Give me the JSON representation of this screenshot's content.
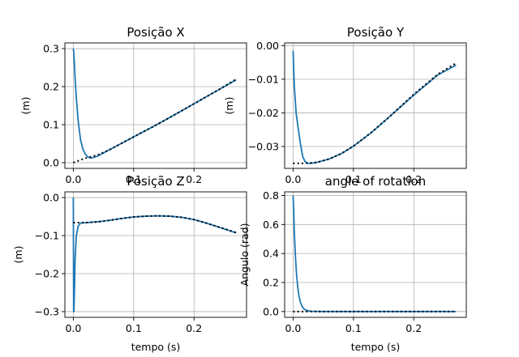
{
  "chart_data": [
    {
      "type": "line",
      "title": "Posição X",
      "xlabel": "",
      "ylabel": "(m)",
      "xlim": [
        -0.014,
        0.287
      ],
      "ylim": [
        -0.015,
        0.315
      ],
      "xticks": [
        0.0,
        0.1,
        0.2
      ],
      "xtick_labels": [
        "0.0",
        "0.1",
        "0.2"
      ],
      "yticks": [
        0.0,
        0.1,
        0.2,
        0.3
      ],
      "ytick_labels": [
        "0.0",
        "0.1",
        "0.2",
        "0.3"
      ],
      "grid": true,
      "series": [
        {
          "style": "solid",
          "color": "#1f77b4",
          "x": [
            0.0,
            0.001,
            0.003,
            0.005,
            0.008,
            0.012,
            0.016,
            0.02,
            0.025,
            0.03,
            0.04,
            0.06,
            0.08,
            0.1,
            0.13,
            0.16,
            0.2,
            0.24,
            0.27
          ],
          "y": [
            0.3,
            0.285,
            0.22,
            0.17,
            0.11,
            0.06,
            0.035,
            0.022,
            0.014,
            0.012,
            0.017,
            0.034,
            0.051,
            0.068,
            0.093,
            0.119,
            0.155,
            0.191,
            0.218
          ]
        },
        {
          "style": "dotted",
          "color": "#000000",
          "x": [
            0.0,
            0.02,
            0.04,
            0.06,
            0.08,
            0.1,
            0.13,
            0.16,
            0.2,
            0.24,
            0.27
          ],
          "y": [
            0.0,
            0.012,
            0.02,
            0.034,
            0.051,
            0.068,
            0.093,
            0.119,
            0.155,
            0.191,
            0.22
          ]
        }
      ]
    },
    {
      "type": "line",
      "title": "Posição Y",
      "xlabel": "",
      "ylabel": "(m)",
      "xlim": [
        -0.014,
        0.287
      ],
      "ylim": [
        -0.0365,
        0.0008
      ],
      "xticks": [
        0.0,
        0.1,
        0.2
      ],
      "xtick_labels": [
        "0.0",
        "0.1",
        "0.2"
      ],
      "yticks": [
        0.0,
        -0.01,
        -0.02,
        -0.03
      ],
      "ytick_labels": [
        "0.00",
        "−0.01",
        "−0.02",
        "−0.03"
      ],
      "grid": true,
      "series": [
        {
          "style": "solid",
          "color": "#1f77b4",
          "x": [
            0.0,
            0.002,
            0.005,
            0.008,
            0.012,
            0.016,
            0.02,
            0.025,
            0.03,
            0.04,
            0.06,
            0.08,
            0.1,
            0.13,
            0.16,
            0.2,
            0.24,
            0.27
          ],
          "y": [
            -0.0015,
            -0.012,
            -0.02,
            -0.024,
            -0.029,
            -0.033,
            -0.0345,
            -0.035,
            -0.035,
            -0.0347,
            -0.0337,
            -0.0321,
            -0.0299,
            -0.0258,
            -0.0211,
            -0.0147,
            -0.0087,
            -0.0058
          ]
        },
        {
          "style": "dotted",
          "color": "#000000",
          "x": [
            0.0,
            0.02,
            0.04,
            0.06,
            0.08,
            0.1,
            0.13,
            0.16,
            0.2,
            0.24,
            0.27
          ],
          "y": [
            -0.035,
            -0.035,
            -0.0347,
            -0.0337,
            -0.0321,
            -0.0299,
            -0.0258,
            -0.0211,
            -0.0145,
            -0.0085,
            -0.0052
          ]
        }
      ]
    },
    {
      "type": "line",
      "title": "Posição Z",
      "xlabel": "tempo (s)",
      "ylabel": "(m)",
      "xlim": [
        -0.014,
        0.287
      ],
      "ylim": [
        -0.315,
        0.015
      ],
      "xticks": [
        0.0,
        0.1,
        0.2
      ],
      "xtick_labels": [
        "0.0",
        "0.1",
        "0.2"
      ],
      "yticks": [
        0.0,
        -0.1,
        -0.2,
        -0.3
      ],
      "ytick_labels": [
        "0.0",
        "−0.1",
        "−0.2",
        "−0.3"
      ],
      "grid": true,
      "series": [
        {
          "style": "solid",
          "color": "#1f77b4",
          "x": [
            0.0,
            0.0005,
            0.001,
            0.0015,
            0.003,
            0.005,
            0.008,
            0.012,
            0.02,
            0.03,
            0.05,
            0.08,
            0.1,
            0.12,
            0.14,
            0.16,
            0.18,
            0.2,
            0.22,
            0.24,
            0.27
          ],
          "y": [
            0.0,
            -0.3,
            -0.3,
            -0.27,
            -0.16,
            -0.1,
            -0.075,
            -0.067,
            -0.066,
            -0.065,
            -0.062,
            -0.055,
            -0.051,
            -0.049,
            -0.048,
            -0.049,
            -0.052,
            -0.058,
            -0.067,
            -0.077,
            -0.093
          ]
        },
        {
          "style": "dotted",
          "color": "#000000",
          "x": [
            0.0,
            0.02,
            0.04,
            0.06,
            0.08,
            0.1,
            0.12,
            0.14,
            0.16,
            0.18,
            0.2,
            0.22,
            0.24,
            0.27
          ],
          "y": [
            -0.066,
            -0.066,
            -0.064,
            -0.06,
            -0.055,
            -0.051,
            -0.049,
            -0.048,
            -0.049,
            -0.052,
            -0.058,
            -0.067,
            -0.077,
            -0.092
          ]
        }
      ]
    },
    {
      "type": "line",
      "title": "angle of rotation",
      "xlabel": "tempo (s)",
      "ylabel": "Angulo (rad)",
      "xlim": [
        -0.014,
        0.287
      ],
      "ylim": [
        -0.04,
        0.825
      ],
      "xticks": [
        0.0,
        0.1,
        0.2
      ],
      "xtick_labels": [
        "0.0",
        "0.1",
        "0.2"
      ],
      "yticks": [
        0.0,
        0.2,
        0.4,
        0.6,
        0.8
      ],
      "ytick_labels": [
        "0.0",
        "0.2",
        "0.4",
        "0.6",
        "0.8"
      ],
      "grid": true,
      "series": [
        {
          "style": "solid",
          "color": "#1f77b4",
          "x": [
            0.0,
            0.001,
            0.002,
            0.004,
            0.006,
            0.008,
            0.01,
            0.012,
            0.015,
            0.018,
            0.022,
            0.03,
            0.05,
            0.1,
            0.2,
            0.27
          ],
          "y": [
            0.8,
            0.7,
            0.55,
            0.37,
            0.24,
            0.16,
            0.1,
            0.065,
            0.035,
            0.018,
            0.008,
            0.002,
            0.0,
            0.0,
            0.0,
            0.0
          ]
        },
        {
          "style": "dotted",
          "color": "#000000",
          "x": [
            0.0,
            0.05,
            0.1,
            0.15,
            0.2,
            0.27
          ],
          "y": [
            0.0,
            0.0,
            0.0,
            0.0,
            0.0,
            0.0
          ]
        }
      ]
    }
  ]
}
